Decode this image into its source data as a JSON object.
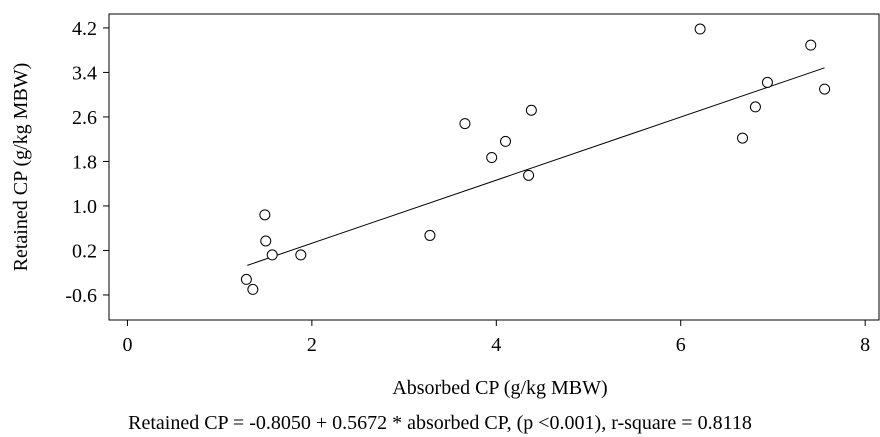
{
  "chart_data": {
    "type": "scatter",
    "xlabel": "Absorbed CP (g/kg MBW)",
    "ylabel": "Retained CP (g/kg MBW)",
    "xlim": [
      -0.2,
      8.15
    ],
    "ylim": [
      -1.05,
      4.45
    ],
    "xticks": [
      0,
      2,
      4,
      6,
      8
    ],
    "yticks": [
      -0.6,
      0.2,
      1.0,
      1.8,
      2.6,
      3.4,
      4.2
    ],
    "ytick_labels": [
      "-0.6",
      "0.2",
      "1.0",
      "1.8",
      "2.6",
      "3.4",
      "4.2"
    ],
    "grid": false,
    "series": [
      {
        "points": [
          {
            "x": 1.29,
            "y": -0.32
          },
          {
            "x": 1.36,
            "y": -0.5
          },
          {
            "x": 1.49,
            "y": 0.84
          },
          {
            "x": 1.5,
            "y": 0.37
          },
          {
            "x": 1.57,
            "y": 0.12
          },
          {
            "x": 1.88,
            "y": 0.12
          },
          {
            "x": 3.28,
            "y": 0.47
          },
          {
            "x": 3.66,
            "y": 2.48
          },
          {
            "x": 3.95,
            "y": 1.87
          },
          {
            "x": 4.1,
            "y": 2.16
          },
          {
            "x": 4.35,
            "y": 1.55
          },
          {
            "x": 4.38,
            "y": 2.72
          },
          {
            "x": 6.21,
            "y": 4.18
          },
          {
            "x": 6.67,
            "y": 2.22
          },
          {
            "x": 6.81,
            "y": 2.78
          },
          {
            "x": 6.94,
            "y": 3.22
          },
          {
            "x": 7.41,
            "y": 3.89
          },
          {
            "x": 7.56,
            "y": 3.1
          }
        ]
      }
    ],
    "fit_line": {
      "intercept": -0.805,
      "slope": 0.5672,
      "x_start": 1.3,
      "x_end": 7.56
    }
  },
  "caption": "Retained CP = -0.8050 + 0.5672 * absorbed CP, (p <0.001), r-square = 0.8118"
}
